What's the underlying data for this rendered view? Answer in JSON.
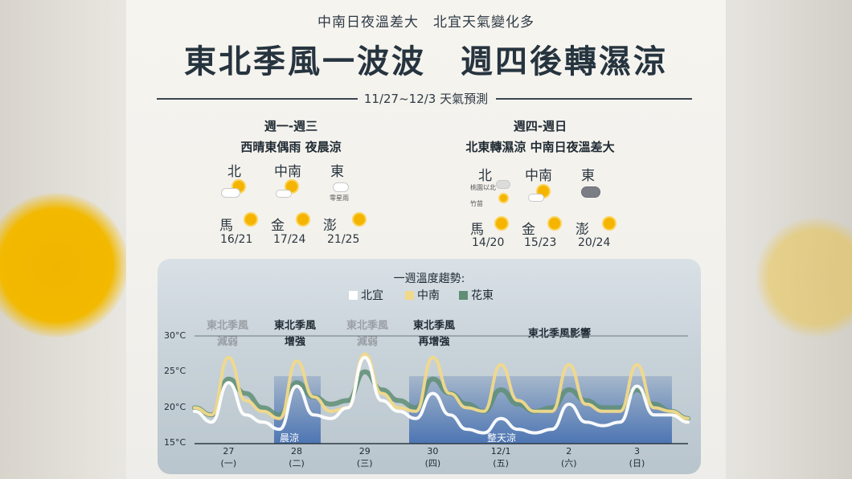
{
  "header": {
    "subtitle": "中南日夜溫差大　北宜天氣變化多",
    "title": "東北季風一波波　週四後轉濕涼",
    "date_range": "11/27~12/3 天氣預測"
  },
  "left": {
    "period": "週一-週三",
    "summary": "西晴東偶雨 夜晨涼",
    "regions": [
      "北",
      "中南",
      "東"
    ],
    "east_note": "零星雨",
    "islands": [
      {
        "name": "馬",
        "temp": "16/21"
      },
      {
        "name": "金",
        "temp": "17/24"
      },
      {
        "name": "澎",
        "temp": "21/25"
      }
    ]
  },
  "right": {
    "period": "週四-週日",
    "summary": "北東轉濕涼 中南日夜溫差大",
    "regions": [
      "北",
      "中南",
      "東"
    ],
    "north_note_1": "桃園以北",
    "north_note_2": "竹苗",
    "islands": [
      {
        "name": "馬",
        "temp": "14/20"
      },
      {
        "name": "金",
        "temp": "15/23"
      },
      {
        "name": "澎",
        "temp": "20/24"
      }
    ]
  },
  "chart_panel": {
    "title": "一週溫度趨勢:",
    "annotations": [
      {
        "text": "東北季風\n減弱",
        "style": "faded"
      },
      {
        "text": "東北季風\n增強",
        "style": "strong"
      },
      {
        "text": "東北季風\n減弱",
        "style": "faded"
      },
      {
        "text": "東北季風\n再增強",
        "style": "strong"
      },
      {
        "text": "東北季風影響",
        "style": "strong"
      }
    ],
    "bands": [
      "晨涼",
      "整天涼"
    ]
  },
  "colors": {
    "north_yilan": "#ffffff",
    "central_south": "#f1d98a",
    "hualien_taitung": "#5f8e74",
    "sun": "#f4b400"
  },
  "chart_data": {
    "type": "line",
    "ylabel": "",
    "ylim": [
      15,
      30
    ],
    "yticks": [
      "30°C",
      "25°C",
      "20°C",
      "15°C"
    ],
    "categories": [
      "27\n(一)",
      "28\n(二)",
      "29\n(三)",
      "30\n(四)",
      "12/1\n(五)",
      "2\n(六)",
      "3\n(日)"
    ],
    "series": [
      {
        "name": "北宜",
        "color": "#ffffff",
        "values": [
          [
            0,
            19.5
          ],
          [
            0.25,
            18
          ],
          [
            0.5,
            23.5
          ],
          [
            0.75,
            19
          ],
          [
            1.0,
            18
          ],
          [
            1.25,
            17
          ],
          [
            1.5,
            23
          ],
          [
            1.75,
            19
          ],
          [
            2.0,
            18.5
          ],
          [
            2.25,
            20
          ],
          [
            2.5,
            27
          ],
          [
            2.75,
            21
          ],
          [
            3.0,
            19.5
          ],
          [
            3.25,
            18.5
          ],
          [
            3.5,
            22
          ],
          [
            3.75,
            19
          ],
          [
            4.0,
            17
          ],
          [
            4.25,
            16.5
          ],
          [
            4.5,
            18.5
          ],
          [
            4.75,
            17
          ],
          [
            5.0,
            16.5
          ],
          [
            5.25,
            17
          ],
          [
            5.5,
            20.5
          ],
          [
            5.75,
            18
          ],
          [
            6.0,
            17.5
          ],
          [
            6.25,
            18
          ],
          [
            6.5,
            23
          ],
          [
            6.75,
            19
          ],
          [
            7.0,
            19
          ],
          [
            7.25,
            18
          ]
        ]
      },
      {
        "name": "中南",
        "color": "#f1d98a",
        "values": [
          [
            0,
            20
          ],
          [
            0.25,
            19
          ],
          [
            0.5,
            27
          ],
          [
            0.75,
            21
          ],
          [
            1.0,
            19.5
          ],
          [
            1.25,
            18.5
          ],
          [
            1.5,
            26.5
          ],
          [
            1.75,
            21.5
          ],
          [
            2.0,
            19.5
          ],
          [
            2.25,
            20
          ],
          [
            2.5,
            27.5
          ],
          [
            2.75,
            22
          ],
          [
            3.0,
            20
          ],
          [
            3.25,
            19.5
          ],
          [
            3.5,
            27
          ],
          [
            3.75,
            22
          ],
          [
            4.0,
            20
          ],
          [
            4.25,
            19.5
          ],
          [
            4.5,
            26
          ],
          [
            4.75,
            21
          ],
          [
            5.0,
            19.5
          ],
          [
            5.25,
            19.5
          ],
          [
            5.5,
            26
          ],
          [
            5.75,
            20.5
          ],
          [
            6.0,
            19.5
          ],
          [
            6.25,
            19.5
          ],
          [
            6.5,
            26
          ],
          [
            6.75,
            20
          ],
          [
            7.0,
            19.5
          ],
          [
            7.25,
            18.5
          ]
        ]
      },
      {
        "name": "花東",
        "color": "#5f8e74",
        "values": [
          [
            0,
            20
          ],
          [
            0.25,
            19
          ],
          [
            0.5,
            24
          ],
          [
            0.75,
            22
          ],
          [
            1.0,
            20
          ],
          [
            1.25,
            19
          ],
          [
            1.5,
            23.5
          ],
          [
            1.75,
            21.5
          ],
          [
            2.0,
            20.5
          ],
          [
            2.25,
            21
          ],
          [
            2.5,
            25
          ],
          [
            2.75,
            22.5
          ],
          [
            3.0,
            21
          ],
          [
            3.25,
            20
          ],
          [
            3.5,
            24
          ],
          [
            3.75,
            22
          ],
          [
            4.0,
            20.5
          ],
          [
            4.25,
            19.5
          ],
          [
            4.5,
            22.5
          ],
          [
            4.75,
            20.5
          ],
          [
            5.0,
            19.5
          ],
          [
            5.25,
            20
          ],
          [
            5.5,
            22.5
          ],
          [
            5.75,
            21
          ],
          [
            6.0,
            20
          ],
          [
            6.25,
            20
          ],
          [
            6.5,
            22.5
          ],
          [
            6.75,
            20.5
          ],
          [
            7.0,
            19.5
          ],
          [
            7.25,
            18.5
          ]
        ]
      }
    ],
    "legend": "top",
    "grid": true
  }
}
